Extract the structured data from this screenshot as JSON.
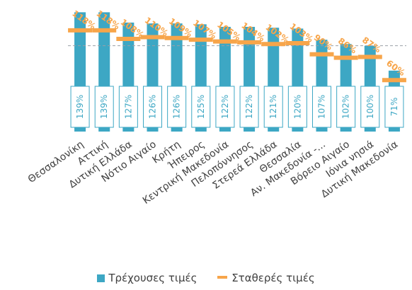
{
  "chart_data": {
    "type": "bar",
    "categories": [
      "Θεσσαλονίκη",
      "Αττική",
      "Δυτική Ελλάδα",
      "Νότιο Αιγαίο",
      "Κρήτη",
      "Ήπειρος",
      "Κεντρική Μακεδονία",
      "Πελοπόννησος",
      "Στερεά Ελλάδα",
      "Θεσσαλία",
      "Αν. Μακεδονία -...",
      "Βόρειο Αιγαίο",
      "Ιόνια νησιά",
      "Δυτική Μακεδονία"
    ],
    "series": [
      {
        "name": "Τρέχουσες τιμές",
        "type": "bar",
        "values": [
          139,
          139,
          127,
          126,
          126,
          125,
          122,
          122,
          121,
          120,
          107,
          102,
          100,
          71
        ],
        "labels": [
          "139%",
          "139%",
          "127%",
          "126%",
          "126%",
          "125%",
          "122%",
          "122%",
          "121%",
          "120%",
          "107%",
          "102%",
          "100%",
          "71%"
        ]
      },
      {
        "name": "Σταθερές τιμές",
        "type": "line-marker",
        "values": [
          118,
          118,
          108,
          110,
          109,
          107,
          105,
          104,
          102,
          103,
          90,
          86,
          87,
          60
        ],
        "labels": [
          "118%",
          "118%",
          "108%",
          "110%",
          "109%",
          "107%",
          "105%",
          "104%",
          "102%",
          "103%",
          "90%",
          "86%",
          "87%",
          "60%"
        ]
      }
    ],
    "reference_line": 100,
    "colors": {
      "bar": "#3da7c4",
      "marker": "#f7a54a",
      "bar_label": "#3da7c4",
      "marker_label": "#f7a54a",
      "axis_label": "#404040"
    },
    "grid": false,
    "legend_position": "bottom"
  },
  "legend": {
    "current": "Τρέχουσες τιμές",
    "constant": "Σταθερές τιμές"
  }
}
